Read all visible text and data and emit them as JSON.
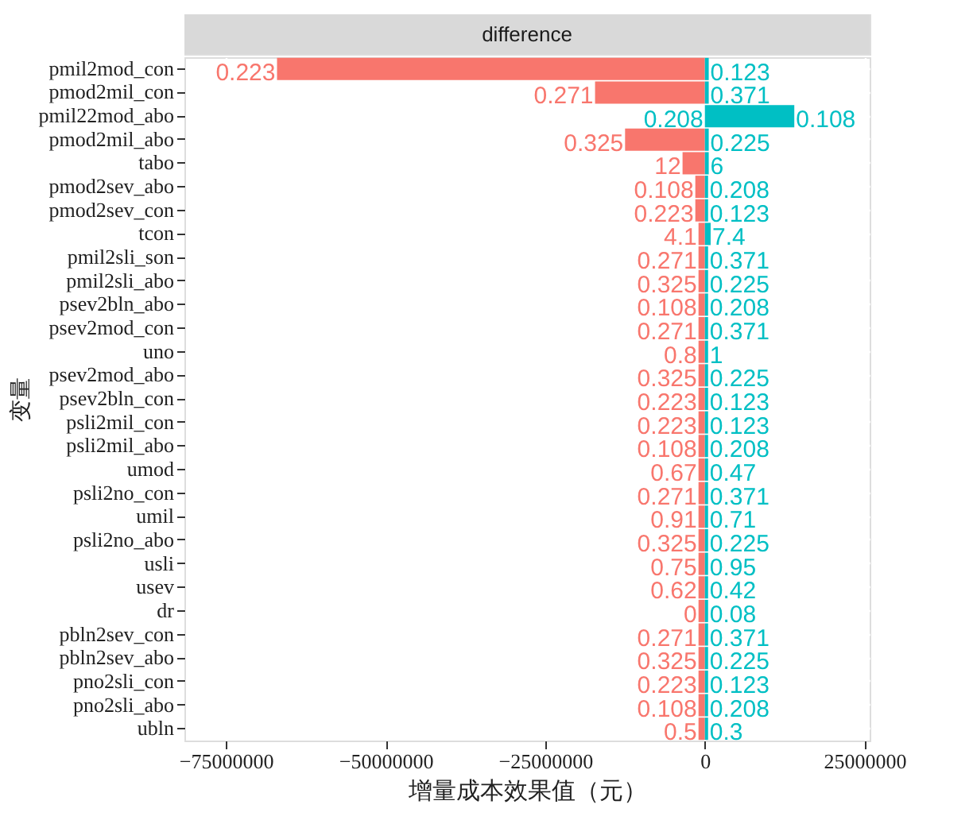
{
  "chart_data": {
    "type": "bar",
    "orientation": "horizontal",
    "stacked": true,
    "title": "difference",
    "xlabel": "增量成本效果值（元）",
    "ylabel": "变量",
    "categories": [
      "pmil2mod_con",
      "pmod2mil_con",
      "pmil22mod_abo",
      "pmod2mil_abo",
      "tabo",
      "pmod2sev_abo",
      "pmod2sev_con",
      "tcon",
      "pmil2sli_son",
      "pmil2sli_abo",
      "psev2bln_abo",
      "psev2mod_con",
      "uno",
      "psev2mod_abo",
      "psev2bln_con",
      "psli2mil_con",
      "psli2mil_abo",
      "umod",
      "psli2no_con",
      "umil",
      "psli2no_abo",
      "usli",
      "usev",
      "dr",
      "pbln2sev_con",
      "pbln2sev_abo",
      "pno2sli_con",
      "pno2sli_abo",
      "ubln"
    ],
    "series": [
      {
        "color": "#f8766d",
        "values": [
          -67000000,
          -17200000,
          null,
          -12500000,
          -3500000,
          -1500000,
          -1500000,
          -1000000,
          -1000000,
          -1000000,
          -1000000,
          -1000000,
          -1000000,
          -1000000,
          -1000000,
          -1000000,
          -1000000,
          -1000000,
          -1000000,
          -1000000,
          -1000000,
          -1000000,
          -1000000,
          -1000000,
          -1000000,
          -1000000,
          -1000000,
          -1000000,
          -1000000
        ]
      },
      {
        "color": "#00bfc4",
        "values": [
          600000,
          600000,
          14000000,
          600000,
          600000,
          500000,
          500000,
          900000,
          500000,
          500000,
          500000,
          500000,
          500000,
          500000,
          500000,
          500000,
          500000,
          500000,
          500000,
          500000,
          500000,
          500000,
          500000,
          500000,
          500000,
          500000,
          500000,
          500000,
          500000
        ]
      }
    ],
    "annotations": [
      {
        "text": "0.223",
        "x": -67000000,
        "y": "pmil2mod_con"
      },
      {
        "text": "0.123",
        "x": 600000,
        "y": "pmil2mod_con"
      },
      {
        "text": "0.271",
        "x": -17200000,
        "y": "pmod2mil_con"
      },
      {
        "text": "0.371",
        "x": 600000,
        "y": "pmod2mil_con"
      },
      {
        "text": "0.208",
        "x": 0,
        "y": "pmil22mod_abo"
      },
      {
        "text": "0.108",
        "x": 14000000,
        "y": "pmil22mod_abo"
      },
      {
        "text": "0.325",
        "x": -12500000,
        "y": "pmod2mil_abo"
      },
      {
        "text": "0.225",
        "x": 600000,
        "y": "pmod2mil_abo"
      },
      {
        "text": "12",
        "x": -3500000,
        "y": "tabo"
      },
      {
        "text": "6",
        "x": 600000,
        "y": "tabo"
      },
      {
        "text": "0.108",
        "x": -1500000,
        "y": "pmod2sev_abo"
      },
      {
        "text": "0.208",
        "x": 500000,
        "y": "pmod2sev_abo"
      },
      {
        "text": "0.223",
        "x": -1500000,
        "y": "pmod2sev_con"
      },
      {
        "text": "0.123",
        "x": 500000,
        "y": "pmod2sev_con"
      },
      {
        "text": "4.1",
        "x": -1000000,
        "y": "tcon"
      },
      {
        "text": "7.4",
        "x": 900000,
        "y": "tcon"
      },
      {
        "text": "0.271",
        "x": -1000000,
        "y": "pmil2sli_son"
      },
      {
        "text": "0.371",
        "x": 500000,
        "y": "pmil2sli_son"
      },
      {
        "text": "0.325",
        "x": -1000000,
        "y": "pmil2sli_abo"
      },
      {
        "text": "0.225",
        "x": 500000,
        "y": "pmil2sli_abo"
      },
      {
        "text": "0.108",
        "x": -1000000,
        "y": "psev2bln_abo"
      },
      {
        "text": "0.208",
        "x": 500000,
        "y": "psev2bln_abo"
      },
      {
        "text": "0.271",
        "x": -1000000,
        "y": "psev2mod_con"
      },
      {
        "text": "0.371",
        "x": 500000,
        "y": "psev2mod_con"
      },
      {
        "text": "0.8",
        "x": -1000000,
        "y": "uno"
      },
      {
        "text": "1",
        "x": 500000,
        "y": "uno"
      },
      {
        "text": "0.325",
        "x": -1000000,
        "y": "psev2mod_abo"
      },
      {
        "text": "0.225",
        "x": 500000,
        "y": "psev2mod_abo"
      },
      {
        "text": "0.223",
        "x": -1000000,
        "y": "psev2bln_con"
      },
      {
        "text": "0.123",
        "x": 500000,
        "y": "psev2bln_con"
      },
      {
        "text": "0.223",
        "x": -1000000,
        "y": "psli2mil_con"
      },
      {
        "text": "0.123",
        "x": 500000,
        "y": "psli2mil_con"
      },
      {
        "text": "0.108",
        "x": -1000000,
        "y": "psli2mil_abo"
      },
      {
        "text": "0.208",
        "x": 500000,
        "y": "psli2mil_abo"
      },
      {
        "text": "0.67",
        "x": -1000000,
        "y": "umod"
      },
      {
        "text": "0.47",
        "x": 500000,
        "y": "umod"
      },
      {
        "text": "0.271",
        "x": -1000000,
        "y": "psli2no_con"
      },
      {
        "text": "0.371",
        "x": 500000,
        "y": "psli2no_con"
      },
      {
        "text": "0.91",
        "x": -1000000,
        "y": "umil"
      },
      {
        "text": "0.71",
        "x": 500000,
        "y": "umil"
      },
      {
        "text": "0.325",
        "x": -1000000,
        "y": "psli2no_abo"
      },
      {
        "text": "0.225",
        "x": 500000,
        "y": "psli2no_abo"
      },
      {
        "text": "0.75",
        "x": -1000000,
        "y": "usli"
      },
      {
        "text": "0.95",
        "x": 500000,
        "y": "usli"
      },
      {
        "text": "0.62",
        "x": -1000000,
        "y": "usev"
      },
      {
        "text": "0.42",
        "x": 500000,
        "y": "usev"
      },
      {
        "text": "0",
        "x": -1000000,
        "y": "dr"
      },
      {
        "text": "0.08",
        "x": 500000,
        "y": "dr"
      },
      {
        "text": "0.271",
        "x": -1000000,
        "y": "pbln2sev_con"
      },
      {
        "text": "0.371",
        "x": 500000,
        "y": "pbln2sev_con"
      },
      {
        "text": "0.325",
        "x": -1000000,
        "y": "pbln2sev_abo"
      },
      {
        "text": "0.225",
        "x": 500000,
        "y": "pbln2sev_abo"
      },
      {
        "text": "0.223",
        "x": -1000000,
        "y": "pno2sli_con"
      },
      {
        "text": "0.123",
        "x": 500000,
        "y": "pno2sli_con"
      },
      {
        "text": "0.108",
        "x": -1000000,
        "y": "pno2sli_abo"
      },
      {
        "text": "0.208",
        "x": 500000,
        "y": "pno2sli_abo"
      },
      {
        "text": "0.5",
        "x": -1000000,
        "y": "ubln"
      },
      {
        "text": "0.3",
        "x": 500000,
        "y": "ubln"
      }
    ],
    "xlim": [
      -81500000,
      25800000
    ],
    "xticks": [
      -75000000,
      -50000000,
      -25000000,
      0,
      25000000
    ],
    "grid": true
  }
}
